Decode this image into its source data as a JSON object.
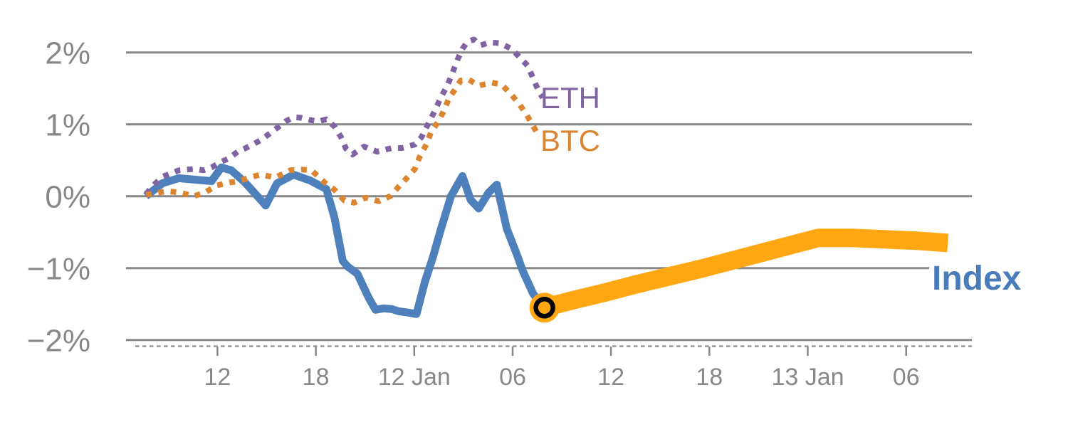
{
  "chart_data": {
    "type": "line",
    "title": "",
    "x_axis": {
      "unit": "hours-from-series-start",
      "tick_labels": [
        "12",
        "18",
        "12 Jan",
        "06",
        "12",
        "18",
        "13 Jan",
        "06"
      ],
      "tick_t": [
        4.36,
        10.36,
        16.36,
        22.36,
        28.36,
        34.36,
        40.36,
        46.36
      ],
      "grid": false
    },
    "y_axis": {
      "tick_labels": [
        "2%",
        "1%",
        "0%",
        "−1%",
        "−2%"
      ],
      "tick_values": [
        2,
        1,
        0,
        -1,
        -2
      ],
      "ylim": [
        -2.1,
        2.3
      ],
      "grid": true
    },
    "colors": {
      "eth": "#8064A2",
      "btc": "#DD8431",
      "index": "#4E80BC",
      "forecast": "#FFA713",
      "index_label": "#4A7CBB",
      "grid": "#878787",
      "axis_text": "#888888"
    },
    "series": [
      {
        "name": "ETH",
        "style": "dotted",
        "color": "#8064A2",
        "points": [
          [
            0,
            0.03
          ],
          [
            0.5,
            0.16
          ],
          [
            1,
            0.27
          ],
          [
            2,
            0.36
          ],
          [
            3,
            0.38
          ],
          [
            3.5,
            0.36
          ],
          [
            4,
            0.4
          ],
          [
            4.6,
            0.48
          ],
          [
            5,
            0.52
          ],
          [
            5.6,
            0.62
          ],
          [
            6,
            0.66
          ],
          [
            6.6,
            0.73
          ],
          [
            7,
            0.78
          ],
          [
            7.6,
            0.88
          ],
          [
            8,
            0.95
          ],
          [
            8.5,
            1.04
          ],
          [
            9,
            1.1
          ],
          [
            9.5,
            1.09
          ],
          [
            10,
            1.06
          ],
          [
            10.5,
            1.04
          ],
          [
            11,
            1.07
          ],
          [
            11.5,
            0.97
          ],
          [
            11.9,
            0.82
          ],
          [
            12.2,
            0.66
          ],
          [
            12.6,
            0.58
          ],
          [
            13.3,
            0.69
          ],
          [
            14.1,
            0.62
          ],
          [
            15,
            0.67
          ],
          [
            15.6,
            0.67
          ],
          [
            16.4,
            0.72
          ],
          [
            16.8,
            0.82
          ],
          [
            17.2,
            1.0
          ],
          [
            17.6,
            1.18
          ],
          [
            18,
            1.38
          ],
          [
            18.4,
            1.55
          ],
          [
            18.7,
            1.72
          ],
          [
            19,
            1.9
          ],
          [
            19.3,
            2.05
          ],
          [
            19.6,
            2.15
          ],
          [
            20,
            2.18
          ],
          [
            20.4,
            2.1
          ],
          [
            21,
            2.14
          ],
          [
            21.6,
            2.13
          ],
          [
            22.3,
            2.05
          ],
          [
            22.8,
            1.93
          ],
          [
            23.3,
            1.81
          ],
          [
            23.7,
            1.59
          ],
          [
            24,
            1.44
          ],
          [
            24.2,
            1.37
          ]
        ]
      },
      {
        "name": "BTC",
        "style": "dotted",
        "color": "#DD8431",
        "points": [
          [
            0,
            0.02
          ],
          [
            0.5,
            0.04
          ],
          [
            1.3,
            0.07
          ],
          [
            2.1,
            0.05
          ],
          [
            2.9,
            0.0
          ],
          [
            3.6,
            0.05
          ],
          [
            4.3,
            0.15
          ],
          [
            5.1,
            0.19
          ],
          [
            5.7,
            0.21
          ],
          [
            6.3,
            0.26
          ],
          [
            7,
            0.3
          ],
          [
            7.9,
            0.26
          ],
          [
            8.8,
            0.36
          ],
          [
            9.5,
            0.37
          ],
          [
            10.1,
            0.36
          ],
          [
            10.9,
            0.19
          ],
          [
            11.5,
            0.09
          ],
          [
            12.1,
            -0.06
          ],
          [
            12.7,
            -0.09
          ],
          [
            13.4,
            -0.02
          ],
          [
            14.2,
            -0.07
          ],
          [
            14.9,
            0.0
          ],
          [
            15.4,
            0.13
          ],
          [
            15.9,
            0.25
          ],
          [
            16.4,
            0.38
          ],
          [
            16.7,
            0.55
          ],
          [
            17.1,
            0.72
          ],
          [
            17.4,
            0.9
          ],
          [
            17.9,
            1.06
          ],
          [
            18.2,
            1.21
          ],
          [
            18.5,
            1.37
          ],
          [
            18.8,
            1.47
          ],
          [
            19.2,
            1.61
          ],
          [
            19.7,
            1.62
          ],
          [
            20.3,
            1.54
          ],
          [
            21.1,
            1.58
          ],
          [
            21.7,
            1.55
          ],
          [
            22.3,
            1.41
          ],
          [
            22.8,
            1.27
          ],
          [
            23.2,
            1.14
          ],
          [
            23.6,
            0.98
          ],
          [
            23.8,
            0.9
          ],
          [
            24,
            0.85
          ]
        ]
      },
      {
        "name": "Index",
        "style": "solid",
        "color": "#4E80BC",
        "points": [
          [
            0,
            0.0
          ],
          [
            1,
            0.18
          ],
          [
            2,
            0.25
          ],
          [
            3,
            0.23
          ],
          [
            4,
            0.21
          ],
          [
            4.6,
            0.4
          ],
          [
            5.2,
            0.36
          ],
          [
            6,
            0.2
          ],
          [
            7,
            -0.05
          ],
          [
            7.3,
            -0.13
          ],
          [
            8,
            0.18
          ],
          [
            9,
            0.3
          ],
          [
            10,
            0.22
          ],
          [
            11,
            0.1
          ],
          [
            11.5,
            -0.3
          ],
          [
            12,
            -0.9
          ],
          [
            12.3,
            -0.98
          ],
          [
            12.6,
            -1.03
          ],
          [
            12.9,
            -1.08
          ],
          [
            13.2,
            -1.23
          ],
          [
            13.6,
            -1.42
          ],
          [
            14,
            -1.58
          ],
          [
            14.5,
            -1.56
          ],
          [
            15,
            -1.57
          ],
          [
            15.4,
            -1.6
          ],
          [
            16,
            -1.62
          ],
          [
            16.5,
            -1.64
          ],
          [
            17,
            -1.2
          ],
          [
            17.5,
            -0.85
          ],
          [
            18,
            -0.45
          ],
          [
            18.6,
            0.0
          ],
          [
            19.3,
            0.28
          ],
          [
            19.8,
            -0.05
          ],
          [
            20.3,
            -0.17
          ],
          [
            20.9,
            0.05
          ],
          [
            21.4,
            0.16
          ],
          [
            22,
            -0.45
          ],
          [
            22.6,
            -0.8
          ],
          [
            23,
            -1.05
          ],
          [
            23.6,
            -1.35
          ],
          [
            24,
            -1.48
          ],
          [
            24.3,
            -1.55
          ]
        ]
      },
      {
        "name": "Index forecast",
        "style": "solid-thick",
        "color": "#FFA713",
        "points": [
          [
            24.3,
            -1.55
          ],
          [
            26,
            -1.45
          ],
          [
            28,
            -1.34
          ],
          [
            30,
            -1.22
          ],
          [
            32,
            -1.11
          ],
          [
            34,
            -1.0
          ],
          [
            36,
            -0.88
          ],
          [
            38,
            -0.76
          ],
          [
            40,
            -0.64
          ],
          [
            41,
            -0.58
          ],
          [
            43,
            -0.58
          ],
          [
            45,
            -0.6
          ],
          [
            47,
            -0.62
          ],
          [
            48.9,
            -0.65
          ]
        ]
      }
    ],
    "marker": {
      "name": "forecast-start-marker",
      "t": 24.3,
      "value": -1.55,
      "fill": "#FFA713",
      "ring": "#000000"
    },
    "labels": [
      {
        "text": "ETH",
        "color": "#8064A2"
      },
      {
        "text": "BTC",
        "color": "#DD8431"
      },
      {
        "text": "Index",
        "color": "#4A7CBB"
      }
    ],
    "legend_position": "end-of-line"
  }
}
